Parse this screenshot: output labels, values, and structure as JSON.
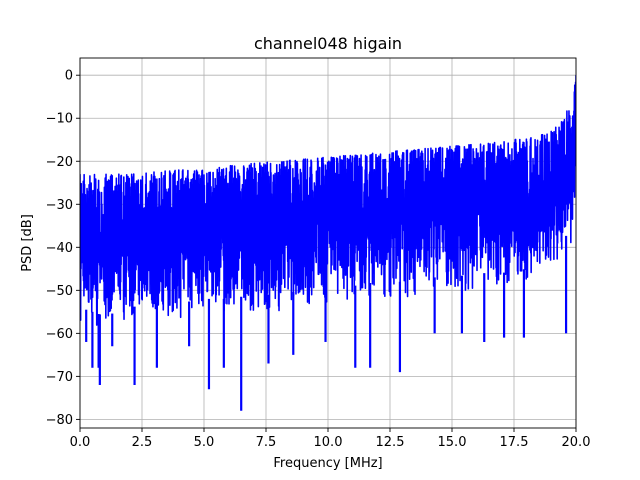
{
  "chart_data": {
    "type": "line",
    "title": "channel048 higain",
    "xlabel": "Frequency [MHz]",
    "ylabel": "PSD [dB]",
    "xlim": [
      0,
      20
    ],
    "ylim": [
      -82,
      4
    ],
    "xticks": [
      0,
      2.5,
      5,
      7.5,
      10,
      12.5,
      15,
      17.5,
      20
    ],
    "xtick_labels": [
      "0.0",
      "2.5",
      "5.0",
      "7.5",
      "10.0",
      "12.5",
      "15.0",
      "17.5",
      "20.0"
    ],
    "yticks": [
      0,
      -10,
      -20,
      -30,
      -40,
      -50,
      -60,
      -70,
      -80
    ],
    "ytick_labels": [
      "0",
      "−10",
      "−20",
      "−30",
      "−40",
      "−50",
      "−60",
      "−70",
      "−80"
    ],
    "grid": true,
    "color": "#0000ff",
    "series": [
      {
        "x": [
          0,
          1,
          2,
          3,
          4,
          5,
          6,
          7,
          8,
          9,
          10,
          11,
          12,
          13,
          14,
          15,
          16,
          17,
          18,
          18.5,
          19,
          19.5,
          19.8,
          20
        ],
        "upper_envelope": [
          -23,
          -23,
          -23,
          -22.5,
          -22,
          -22,
          -21,
          -20.5,
          -20,
          -19.5,
          -19,
          -18.5,
          -18,
          -17.5,
          -17,
          -16.5,
          -16,
          -15.5,
          -14.5,
          -13.5,
          -13,
          -10,
          -6,
          0
        ],
        "lower_envelope": [
          -58,
          -60,
          -58,
          -57,
          -57,
          -56,
          -56,
          -55,
          -55,
          -54,
          -53,
          -53,
          -52,
          -52,
          -51,
          -51,
          -50,
          -50,
          -49,
          -47,
          -45,
          -42,
          -40,
          -38
        ]
      }
    ],
    "dips": [
      {
        "x": 0.25,
        "y": -62
      },
      {
        "x": 0.5,
        "y": -68
      },
      {
        "x": 0.75,
        "y": -68
      },
      {
        "x": 0.8,
        "y": -72
      },
      {
        "x": 1.3,
        "y": -63
      },
      {
        "x": 2.2,
        "y": -72
      },
      {
        "x": 3.1,
        "y": -68
      },
      {
        "x": 4.4,
        "y": -63
      },
      {
        "x": 5.2,
        "y": -73
      },
      {
        "x": 5.8,
        "y": -68
      },
      {
        "x": 6.5,
        "y": -78
      },
      {
        "x": 7.6,
        "y": -67
      },
      {
        "x": 8.6,
        "y": -65
      },
      {
        "x": 9.9,
        "y": -62
      },
      {
        "x": 11.1,
        "y": -68
      },
      {
        "x": 11.7,
        "y": -68
      },
      {
        "x": 12.9,
        "y": -69
      },
      {
        "x": 14.3,
        "y": -60
      },
      {
        "x": 15.4,
        "y": -60
      },
      {
        "x": 16.3,
        "y": -62
      },
      {
        "x": 17.1,
        "y": -61
      },
      {
        "x": 17.9,
        "y": -61
      },
      {
        "x": 19.6,
        "y": -60
      }
    ]
  }
}
